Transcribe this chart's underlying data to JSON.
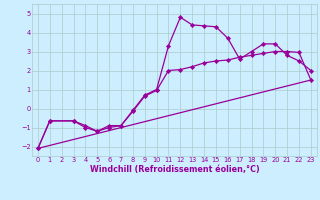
{
  "title": "",
  "xlabel": "Windchill (Refroidissement éolien,°C)",
  "ylabel": "",
  "background_color": "#cceeff",
  "grid_color": "#aacccc",
  "line_color": "#990099",
  "xlim": [
    -0.5,
    23.5
  ],
  "ylim": [
    -2.5,
    5.5
  ],
  "xticks": [
    0,
    1,
    2,
    3,
    4,
    5,
    6,
    7,
    8,
    9,
    10,
    11,
    12,
    13,
    14,
    15,
    16,
    17,
    18,
    19,
    20,
    21,
    22,
    23
  ],
  "yticks": [
    -2,
    -1,
    0,
    1,
    2,
    3,
    4,
    5
  ],
  "line1_x": [
    0,
    1,
    3,
    4,
    5,
    6,
    7,
    8,
    9,
    10,
    11,
    12,
    13,
    14,
    15,
    16,
    17,
    18,
    19,
    20,
    21,
    22,
    23
  ],
  "line1_y": [
    -2.1,
    -0.65,
    -0.65,
    -1.0,
    -1.2,
    -0.9,
    -0.9,
    -0.1,
    0.7,
    1.0,
    3.3,
    4.8,
    4.4,
    4.35,
    4.3,
    3.7,
    2.6,
    3.0,
    3.4,
    3.4,
    2.8,
    2.5,
    2.0
  ],
  "line2_x": [
    0,
    1,
    3,
    4,
    5,
    6,
    7,
    8,
    9,
    10,
    11,
    12,
    13,
    14,
    15,
    16,
    17,
    18,
    19,
    20,
    21,
    22,
    23
  ],
  "line2_y": [
    -2.1,
    -0.65,
    -0.65,
    -0.9,
    -1.2,
    -1.0,
    -0.9,
    -0.15,
    0.65,
    0.95,
    2.0,
    2.05,
    2.2,
    2.4,
    2.5,
    2.55,
    2.7,
    2.8,
    2.9,
    3.0,
    3.0,
    2.95,
    1.5
  ],
  "line3_x": [
    0,
    23
  ],
  "line3_y": [
    -2.1,
    1.5
  ],
  "marker": "D",
  "marker_size": 2.2,
  "line_width": 0.9,
  "tick_fontsize": 4.8,
  "xlabel_fontsize": 5.8,
  "tick_color": "#990099",
  "label_color": "#990099"
}
